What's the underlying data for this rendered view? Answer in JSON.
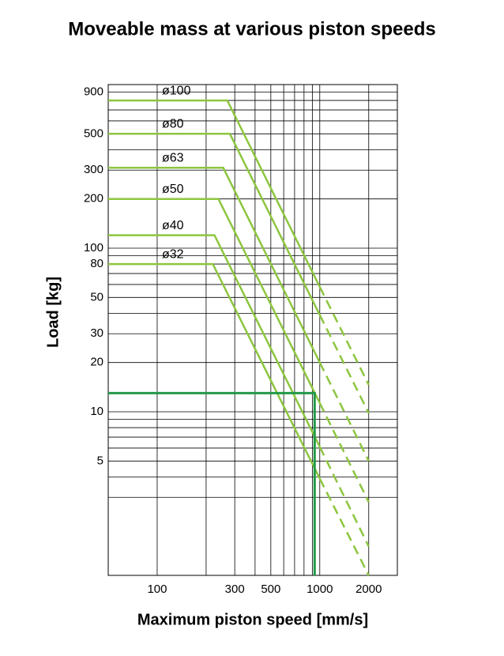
{
  "chart_data": {
    "type": "line",
    "title": "Moveable mass at various piston speeds",
    "xlabel": "Maximum piston speed [mm/s]",
    "ylabel": "Load [kg]",
    "xscale": "log",
    "yscale": "log",
    "xlim": [
      50,
      3000
    ],
    "ylim": [
      1,
      1000
    ],
    "xticks": [
      100,
      300,
      500,
      1000,
      2000
    ],
    "yticks": [
      900,
      500,
      300,
      200,
      100,
      80,
      50,
      30,
      20,
      10,
      5
    ],
    "xgrid": [
      100,
      200,
      300,
      400,
      500,
      600,
      700,
      800,
      900,
      1000,
      2000
    ],
    "ygrid": [
      900,
      800,
      700,
      600,
      500,
      400,
      300,
      200,
      100,
      90,
      80,
      70,
      60,
      50,
      40,
      30,
      20,
      10,
      9,
      8,
      7,
      6,
      5,
      4,
      3
    ],
    "series": [
      {
        "name": "ø100",
        "color": "#8dc63f",
        "x": [
          50,
          270,
          1000
        ],
        "values": [
          800,
          800,
          58
        ],
        "dashed_x": [
          1000,
          2000
        ],
        "dashed_values": [
          58,
          14.6
        ]
      },
      {
        "name": "ø80",
        "color": "#8dc63f",
        "x": [
          50,
          280,
          1000
        ],
        "values": [
          500,
          500,
          39
        ],
        "dashed_x": [
          1000,
          2000
        ],
        "dashed_values": [
          39,
          9.8
        ]
      },
      {
        "name": "ø63",
        "color": "#8dc63f",
        "x": [
          50,
          255,
          1000
        ],
        "values": [
          310,
          310,
          20
        ],
        "dashed_x": [
          1000,
          2000
        ],
        "dashed_values": [
          20,
          5
        ]
      },
      {
        "name": "ø50",
        "color": "#8dc63f",
        "x": [
          50,
          238,
          1000
        ],
        "values": [
          200,
          200,
          11.3
        ],
        "dashed_x": [
          1000,
          2000
        ],
        "dashed_values": [
          11.3,
          2.8
        ]
      },
      {
        "name": "ø40",
        "color": "#8dc63f",
        "x": [
          50,
          225,
          1000
        ],
        "values": [
          120,
          120,
          6.1
        ],
        "dashed_x": [
          1000,
          2000
        ],
        "dashed_values": [
          6.1,
          1.5
        ]
      },
      {
        "name": "ø32",
        "color": "#8dc63f",
        "x": [
          50,
          220,
          1000
        ],
        "values": [
          80,
          80,
          3.9
        ],
        "dashed_x": [
          1000,
          2000
        ],
        "dashed_values": [
          3.9,
          1
        ]
      }
    ],
    "example": {
      "color": "#239a48",
      "x": [
        50,
        930,
        930
      ],
      "values": [
        13,
        13,
        1
      ]
    }
  }
}
